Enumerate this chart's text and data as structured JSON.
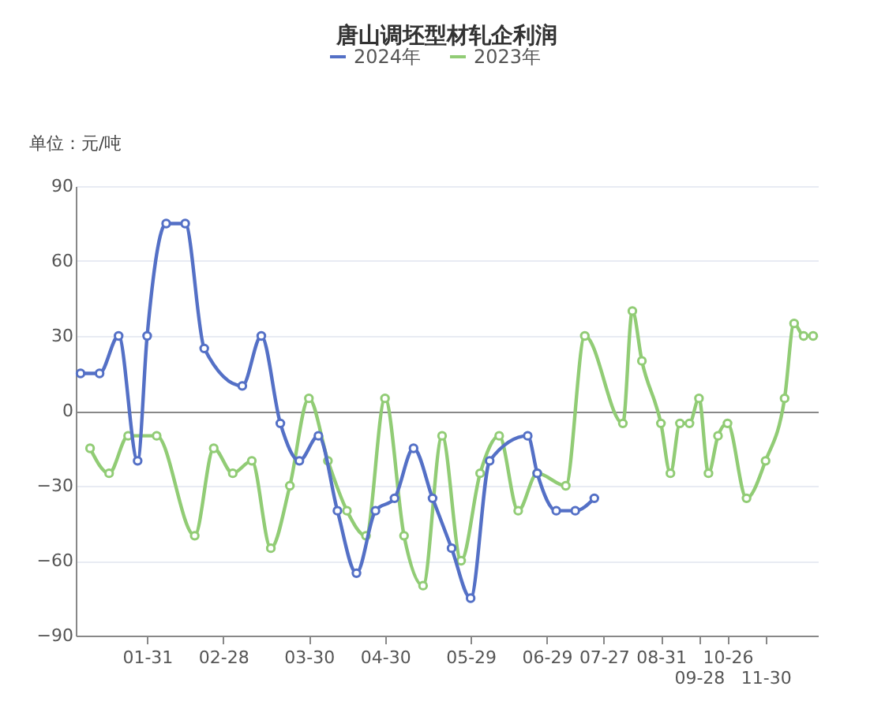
{
  "chart_data": {
    "type": "line",
    "title": "唐山调坯型材轧企利润",
    "ylabel": "单位：元/吨",
    "categories": [
      null,
      null,
      null,
      null,
      null,
      null,
      null,
      "01-31",
      null,
      null,
      null,
      null,
      null,
      null,
      null,
      "02-28",
      null,
      null,
      null,
      null,
      null,
      null,
      null,
      null,
      "03-30",
      null,
      null,
      null,
      null,
      null,
      null,
      null,
      "04-30",
      null,
      null,
      null,
      null,
      null,
      null,
      null,
      null,
      "05-29",
      null,
      null,
      null,
      null,
      null,
      null,
      null,
      "06-29",
      null,
      null,
      null,
      null,
      null,
      "07-27",
      null,
      null,
      null,
      null,
      null,
      "08-31",
      null,
      null,
      null,
      "09-28",
      null,
      null,
      "10-26",
      null,
      null,
      null,
      "11-30",
      null,
      null,
      null,
      null,
      null
    ],
    "series": [
      {
        "name": "2024年",
        "color": "#5470c6",
        "values": [
          15,
          null,
          15,
          null,
          30,
          null,
          -20,
          30,
          null,
          75,
          null,
          75,
          null,
          25,
          null,
          null,
          null,
          10,
          null,
          30,
          null,
          -5,
          null,
          -20,
          null,
          -10,
          null,
          -40,
          null,
          -65,
          null,
          -40,
          null,
          -35,
          null,
          -15,
          null,
          -35,
          null,
          -55,
          null,
          -75,
          null,
          -20,
          null,
          null,
          null,
          -10,
          -25,
          null,
          -40,
          null,
          -40,
          null,
          -35,
          null,
          null,
          null,
          null,
          null,
          null,
          null,
          null,
          null,
          null,
          null,
          null,
          null,
          null,
          null,
          null,
          null,
          null,
          null,
          null,
          null,
          null,
          null
        ]
      },
      {
        "name": "2023年",
        "color": "#91cc75",
        "values": [
          null,
          -15,
          null,
          -25,
          null,
          -10,
          null,
          null,
          -10,
          null,
          null,
          null,
          -50,
          null,
          -15,
          null,
          -25,
          null,
          -20,
          null,
          -55,
          null,
          -30,
          null,
          5,
          null,
          -20,
          null,
          -40,
          null,
          -50,
          null,
          5,
          null,
          -50,
          null,
          -70,
          null,
          -10,
          null,
          -60,
          null,
          -25,
          null,
          -10,
          null,
          -40,
          null,
          -25,
          null,
          null,
          -30,
          null,
          30,
          null,
          null,
          null,
          -5,
          40,
          20,
          null,
          -5,
          -25,
          -5,
          -5,
          5,
          -25,
          -10,
          -5,
          null,
          -35,
          null,
          -20,
          null,
          5,
          35,
          30,
          30
        ]
      }
    ],
    "ylim": [
      -90,
      90
    ],
    "yticks": [
      -90,
      -60,
      -30,
      0,
      30,
      60,
      90
    ],
    "grid": "y",
    "legend": "top",
    "marker": "circle",
    "line_style": "solid"
  }
}
